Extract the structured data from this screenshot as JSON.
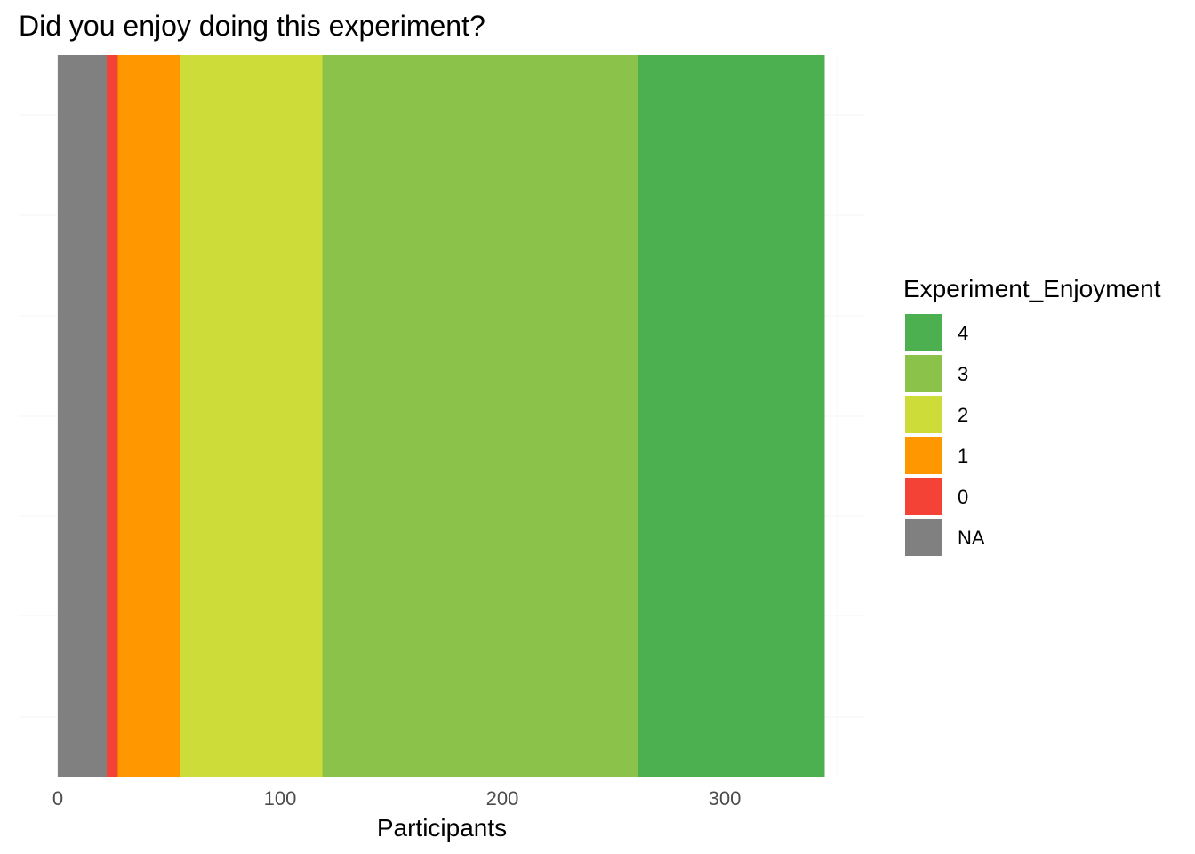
{
  "chart_data": {
    "type": "bar",
    "orientation": "horizontal",
    "stacked": true,
    "title": "Did you enjoy doing this experiment?",
    "xlabel": "Participants",
    "ylabel": "",
    "xlim": [
      0,
      345
    ],
    "xticks": [
      0,
      100,
      200,
      300
    ],
    "grid": true,
    "legend": {
      "title": "Experiment_Enjoyment",
      "placement": "right",
      "entries": [
        "4",
        "3",
        "2",
        "1",
        "0",
        "NA"
      ]
    },
    "segments": [
      {
        "name": "NA",
        "value": 22,
        "color": "#808080"
      },
      {
        "name": "0",
        "value": 5,
        "color": "#f44336"
      },
      {
        "name": "1",
        "value": 28,
        "color": "#ff9800"
      },
      {
        "name": "2",
        "value": 64,
        "color": "#cddc39"
      },
      {
        "name": "3",
        "value": 142,
        "color": "#8bc34a"
      },
      {
        "name": "4",
        "value": 84,
        "color": "#4caf50"
      }
    ]
  }
}
